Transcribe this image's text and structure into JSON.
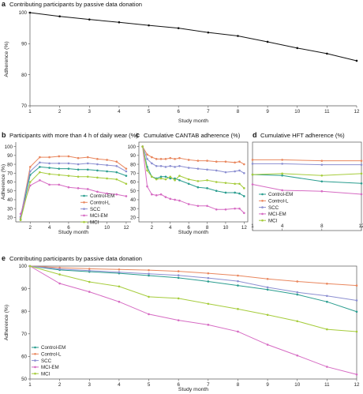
{
  "colors": {
    "Control-EM": "#2a9d8f",
    "Control-L": "#e9875e",
    "SCC": "#8c8fd1",
    "MCI-EM": "#d66bc3",
    "MCI": "#a6cc3c",
    "black": "#111111"
  },
  "chart_data": [
    {
      "panel": "a",
      "type": "line",
      "title": "Contributing participants by passive data donation",
      "xlabel": "Study month",
      "ylabel": "Adherence (%)",
      "xlim": [
        1,
        12
      ],
      "ylim": [
        70,
        100
      ],
      "xticks": [
        1,
        2,
        3,
        4,
        5,
        6,
        7,
        8,
        9,
        10,
        11,
        12
      ],
      "yticks": [
        70,
        80,
        90,
        100
      ],
      "series": [
        {
          "key": "black",
          "x": [
            1,
            2,
            3,
            4,
            5,
            6,
            7,
            8,
            9,
            10,
            11,
            12
          ],
          "values": [
            100,
            98.8,
            97.8,
            96.9,
            95.9,
            95.0,
            93.6,
            92.5,
            90.6,
            88.6,
            86.8,
            84.5
          ]
        }
      ]
    },
    {
      "panel": "b",
      "type": "line",
      "title": "Participants with more than 4 h of daily wear (%)",
      "xlabel": "Study month",
      "ylabel": "Adherence (%)",
      "xlim": [
        0.5,
        12.5
      ],
      "ylim": [
        15,
        105
      ],
      "xticks": [
        2,
        4,
        6,
        8,
        10,
        12
      ],
      "yticks": [
        20,
        30,
        40,
        50,
        60,
        70,
        80,
        90,
        100
      ],
      "legend": [
        "Control-EM",
        "Control-L",
        "SCC",
        "MCI-EM",
        "MCI"
      ],
      "series": [
        {
          "name": "Control-EM",
          "x": [
            1,
            2,
            3,
            4,
            5,
            6,
            7,
            8,
            9,
            10,
            11,
            12
          ],
          "values": [
            18,
            68,
            77,
            76,
            75,
            75,
            74,
            74,
            73,
            72,
            71,
            67
          ]
        },
        {
          "name": "Control-L",
          "x": [
            1,
            2,
            3,
            4,
            5,
            6,
            7,
            8,
            9,
            10,
            11,
            12
          ],
          "values": [
            20,
            77,
            88,
            88,
            89,
            89,
            87,
            88,
            86,
            85,
            83,
            75
          ]
        },
        {
          "name": "SCC",
          "x": [
            1,
            2,
            3,
            4,
            5,
            6,
            7,
            8,
            9,
            10,
            11,
            12
          ],
          "values": [
            21,
            72,
            82,
            81,
            81,
            81,
            80,
            81,
            80,
            79,
            78,
            72
          ]
        },
        {
          "name": "MCI-EM",
          "x": [
            1,
            2,
            3,
            4,
            5,
            6,
            7,
            8,
            9,
            10,
            11,
            12
          ],
          "values": [
            24,
            56,
            62,
            57,
            57,
            54,
            53,
            52,
            49,
            47,
            46,
            44
          ]
        },
        {
          "name": "MCI",
          "x": [
            1,
            2,
            3,
            4,
            5,
            6,
            7,
            8,
            9,
            10,
            11,
            12
          ],
          "values": [
            17,
            60,
            71,
            69,
            68,
            67,
            66,
            66,
            65,
            64,
            63,
            58
          ]
        }
      ]
    },
    {
      "panel": "c",
      "type": "line",
      "title": "Cumulative CANTAB adherence (%)",
      "xlabel": "Study month",
      "ylabel": "",
      "xlim": [
        0.6,
        12.4
      ],
      "ylim": [
        15,
        105
      ],
      "xticks": [
        2,
        4,
        6,
        8,
        10,
        12
      ],
      "yticks": [
        20,
        30,
        40,
        50,
        60,
        70,
        80,
        90,
        100
      ],
      "series": [
        {
          "name": "Control-EM",
          "x": [
            1,
            1.5,
            2,
            2.5,
            3,
            3.5,
            4,
            4.5,
            5,
            6,
            7,
            8,
            9,
            10,
            11,
            11.5,
            12
          ],
          "values": [
            100,
            77,
            66,
            64,
            66,
            66,
            64,
            64,
            62,
            58,
            54,
            53,
            50,
            48,
            48,
            47,
            44
          ]
        },
        {
          "name": "Control-L",
          "x": [
            1,
            1.5,
            2,
            2.5,
            3,
            3.5,
            4,
            4.5,
            5,
            6,
            7,
            8,
            9,
            10,
            11,
            11.5,
            12
          ],
          "values": [
            100,
            91,
            88,
            86,
            86,
            86,
            87,
            86,
            87,
            85,
            84,
            84,
            83,
            83,
            82,
            83,
            80
          ]
        },
        {
          "name": "SCC",
          "x": [
            1,
            1.5,
            2,
            2.5,
            3,
            3.5,
            4,
            4.5,
            5,
            6,
            7,
            8,
            9,
            10,
            11,
            11.5,
            12
          ],
          "values": [
            100,
            86,
            81,
            78,
            78,
            77,
            78,
            77,
            78,
            76,
            75,
            74,
            73,
            71,
            72,
            73,
            70
          ]
        },
        {
          "name": "MCI-EM",
          "x": [
            1,
            1.5,
            2,
            2.5,
            3,
            3.5,
            4,
            4.5,
            5,
            6,
            7,
            8,
            9,
            10,
            11,
            11.5,
            12
          ],
          "values": [
            100,
            55,
            46,
            45,
            46,
            43,
            41,
            40,
            39,
            35,
            33,
            33,
            29,
            29,
            30,
            30,
            25
          ]
        },
        {
          "name": "MCI",
          "x": [
            1,
            1.5,
            2,
            2.5,
            3,
            3.5,
            4,
            4.5,
            5,
            6,
            7,
            8,
            9,
            10,
            11,
            11.5,
            12
          ],
          "values": [
            100,
            73,
            66,
            63,
            64,
            63,
            66,
            62,
            67,
            63,
            61,
            62,
            60,
            59,
            58,
            58,
            53
          ]
        }
      ]
    },
    {
      "panel": "d",
      "type": "line",
      "title": "Cumulative HFT adherence (%)",
      "xlabel": "Study month",
      "ylabel": "",
      "xlim": [
        1,
        12
      ],
      "ylim": [
        15,
        105
      ],
      "xticks": [
        1,
        4,
        8,
        12
      ],
      "yticks": [],
      "legend": [
        "Control-EM",
        "Control-L",
        "SCC",
        "MCI-EM",
        "MCI"
      ],
      "series": [
        {
          "name": "Control-EM",
          "x": [
            1,
            4,
            8,
            12
          ],
          "values": [
            72,
            71,
            65,
            63
          ]
        },
        {
          "name": "Control-L",
          "x": [
            1,
            4,
            8,
            12
          ],
          "values": [
            87,
            87,
            86,
            86
          ]
        },
        {
          "name": "SCC",
          "x": [
            1,
            4,
            8,
            12
          ],
          "values": [
            83,
            83,
            82,
            82
          ]
        },
        {
          "name": "MCI-EM",
          "x": [
            1,
            4,
            8,
            12
          ],
          "values": [
            62,
            56,
            55,
            52
          ]
        },
        {
          "name": "MCI",
          "x": [
            1,
            4,
            8,
            12
          ],
          "values": [
            72,
            73,
            71,
            73
          ]
        }
      ]
    },
    {
      "panel": "e",
      "type": "line",
      "title": "Contributing participants by passive data donation",
      "xlabel": "Study month",
      "ylabel": "Adherence (%)",
      "xlim": [
        1,
        12
      ],
      "ylim": [
        50,
        100
      ],
      "xticks": [
        1,
        2,
        3,
        4,
        5,
        6,
        7,
        8,
        9,
        10,
        11,
        12
      ],
      "yticks": [
        50,
        60,
        70,
        80,
        90,
        100
      ],
      "legend": [
        "Control-EM",
        "Control-L",
        "SCC",
        "MCI-EM",
        "MCI"
      ],
      "series": [
        {
          "name": "Control-EM",
          "x": [
            1,
            2,
            3,
            4,
            5,
            6,
            7,
            8,
            9,
            10,
            11,
            12
          ],
          "values": [
            100,
            98.3,
            97.5,
            96.8,
            95.8,
            94.8,
            93.2,
            91.4,
            89.6,
            87.4,
            84.2,
            79.8
          ]
        },
        {
          "name": "Control-L",
          "x": [
            1,
            2,
            3,
            4,
            5,
            6,
            7,
            8,
            9,
            10,
            11,
            12
          ],
          "values": [
            100,
            99.3,
            98.8,
            98.5,
            98.2,
            97.7,
            96.8,
            95.8,
            94.3,
            93.2,
            92.2,
            91.4
          ]
        },
        {
          "name": "SCC",
          "x": [
            1,
            2,
            3,
            4,
            5,
            6,
            7,
            8,
            9,
            10,
            11,
            12
          ],
          "values": [
            100,
            98.7,
            98.0,
            97.3,
            96.6,
            95.9,
            94.7,
            93.3,
            90.6,
            88.4,
            86.8,
            84.8
          ]
        },
        {
          "name": "MCI-EM",
          "x": [
            1,
            2,
            3,
            4,
            5,
            6,
            7,
            8,
            9,
            10,
            11,
            12
          ],
          "values": [
            100,
            92.3,
            88.6,
            84.2,
            78.7,
            76.0,
            74.0,
            71.0,
            65.2,
            60.4,
            55.4,
            52.0
          ]
        },
        {
          "name": "MCI",
          "x": [
            1,
            2,
            3,
            4,
            5,
            6,
            7,
            8,
            9,
            10,
            11,
            12
          ],
          "values": [
            100,
            96.3,
            93.0,
            91.0,
            86.4,
            85.7,
            83.3,
            81.0,
            78.4,
            75.6,
            72.0,
            71.0
          ]
        }
      ]
    }
  ]
}
